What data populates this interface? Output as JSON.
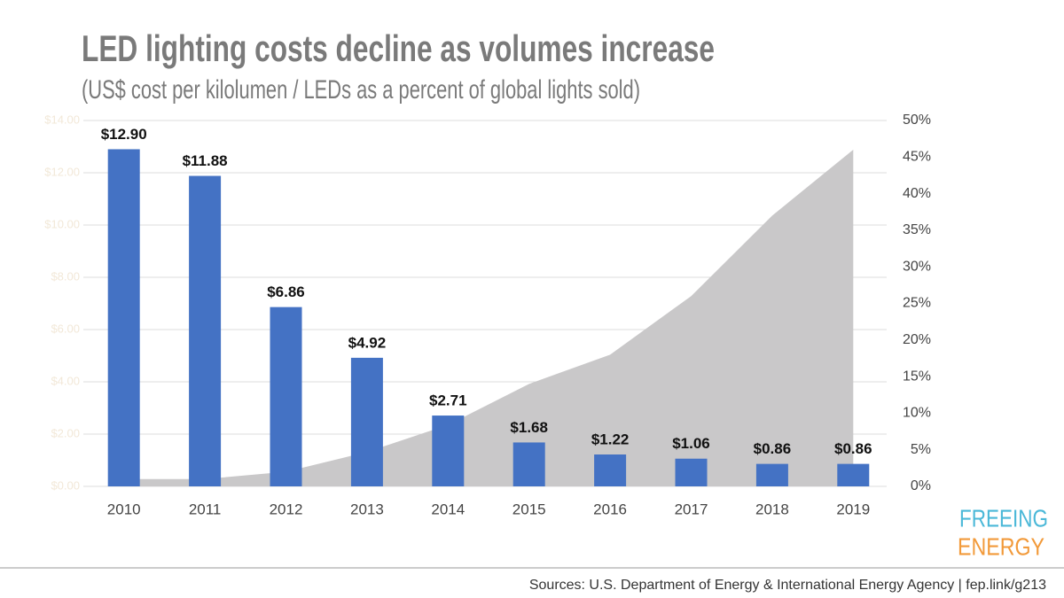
{
  "chart_data": {
    "type": "combo",
    "title": "LED lighting costs decline as volumes increase",
    "subtitle": "(US$ cost per kilolumen / LEDs as a percent of global lights sold)",
    "categories": [
      "2010",
      "2011",
      "2012",
      "2013",
      "2014",
      "2015",
      "2016",
      "2017",
      "2018",
      "2019"
    ],
    "series": [
      {
        "type": "area",
        "axis": "y2",
        "color": "#c9c8c9",
        "values": [
          1,
          1,
          2,
          4.7,
          8.4,
          14,
          18,
          26,
          37,
          46
        ]
      },
      {
        "type": "bar",
        "axis": "y",
        "color": "#4472c4",
        "values": [
          12.9,
          11.88,
          6.86,
          4.92,
          2.71,
          1.68,
          1.22,
          1.06,
          0.86,
          0.86
        ],
        "value_labels": [
          "$12.90",
          "$11.88",
          "$6.86",
          "$4.92",
          "$2.71",
          "$1.68",
          "$1.22",
          "$1.06",
          "$0.86",
          "$0.86"
        ]
      }
    ],
    "ylim": [
      0,
      14
    ],
    "yticks": [
      {
        "value": 0,
        "label": "$0.00"
      },
      {
        "value": 2,
        "label": "$2.00"
      },
      {
        "value": 4,
        "label": "$4.00"
      },
      {
        "value": 6,
        "label": "$6.00"
      },
      {
        "value": 8,
        "label": "$8.00"
      },
      {
        "value": 10,
        "label": "$10.00"
      },
      {
        "value": 12,
        "label": "$12.00"
      },
      {
        "value": 14,
        "label": "$14.00"
      }
    ],
    "y2lim": [
      0,
      50
    ],
    "y2ticks": [
      {
        "value": 0,
        "label": "0%"
      },
      {
        "value": 5,
        "label": "5%"
      },
      {
        "value": 10,
        "label": "10%"
      },
      {
        "value": 15,
        "label": "15%"
      },
      {
        "value": 20,
        "label": "20%"
      },
      {
        "value": 25,
        "label": "25%"
      },
      {
        "value": 30,
        "label": "30%"
      },
      {
        "value": 35,
        "label": "35%"
      },
      {
        "value": 40,
        "label": "40%"
      },
      {
        "value": 45,
        "label": "45%"
      },
      {
        "value": 50,
        "label": "50%"
      }
    ],
    "grid": true
  },
  "branding": {
    "line1": "FREEING",
    "line2": "ENERGY"
  },
  "footer": {
    "source": "Sources: U.S. Department of Energy & International Energy Agency | fep.link/g213"
  }
}
